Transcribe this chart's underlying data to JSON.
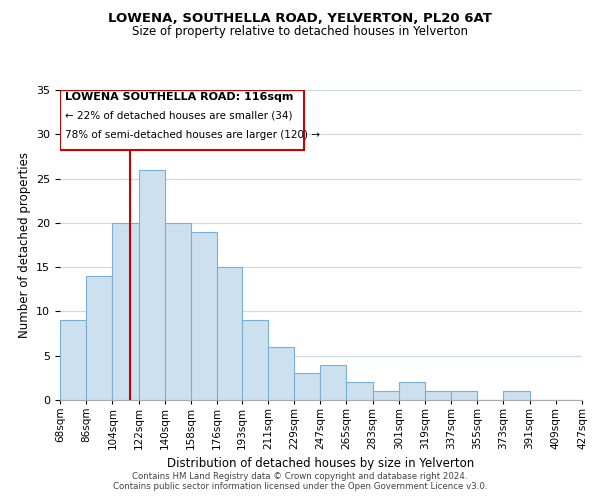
{
  "title": "LOWENA, SOUTHELLA ROAD, YELVERTON, PL20 6AT",
  "subtitle": "Size of property relative to detached houses in Yelverton",
  "xlabel": "Distribution of detached houses by size in Yelverton",
  "ylabel": "Number of detached properties",
  "bar_edges": [
    68,
    86,
    104,
    122,
    140,
    158,
    176,
    193,
    211,
    229,
    247,
    265,
    283,
    301,
    319,
    337,
    355,
    373,
    391,
    409,
    427
  ],
  "bar_heights": [
    9,
    14,
    20,
    26,
    20,
    19,
    15,
    9,
    6,
    3,
    4,
    2,
    1,
    2,
    1,
    1,
    0,
    1,
    0,
    0
  ],
  "bar_color": "#cce0f0",
  "bar_edgecolor": "#7ab0d4",
  "vline_x": 116,
  "vline_color": "#cc0000",
  "ylim": [
    0,
    35
  ],
  "yticks": [
    0,
    5,
    10,
    15,
    20,
    25,
    30,
    35
  ],
  "annotation_title": "LOWENA SOUTHELLA ROAD: 116sqm",
  "annotation_line1": "← 22% of detached houses are smaller (34)",
  "annotation_line2": "78% of semi-detached houses are larger (120) →",
  "annotation_box_edgecolor": "#cc0000",
  "footer_line1": "Contains HM Land Registry data © Crown copyright and database right 2024.",
  "footer_line2": "Contains public sector information licensed under the Open Government Licence v3.0.",
  "background_color": "#ffffff",
  "grid_color": "#ccd9e8",
  "tick_labels": [
    "68sqm",
    "86sqm",
    "104sqm",
    "122sqm",
    "140sqm",
    "158sqm",
    "176sqm",
    "193sqm",
    "211sqm",
    "229sqm",
    "247sqm",
    "265sqm",
    "283sqm",
    "301sqm",
    "319sqm",
    "337sqm",
    "355sqm",
    "373sqm",
    "391sqm",
    "409sqm",
    "427sqm"
  ]
}
